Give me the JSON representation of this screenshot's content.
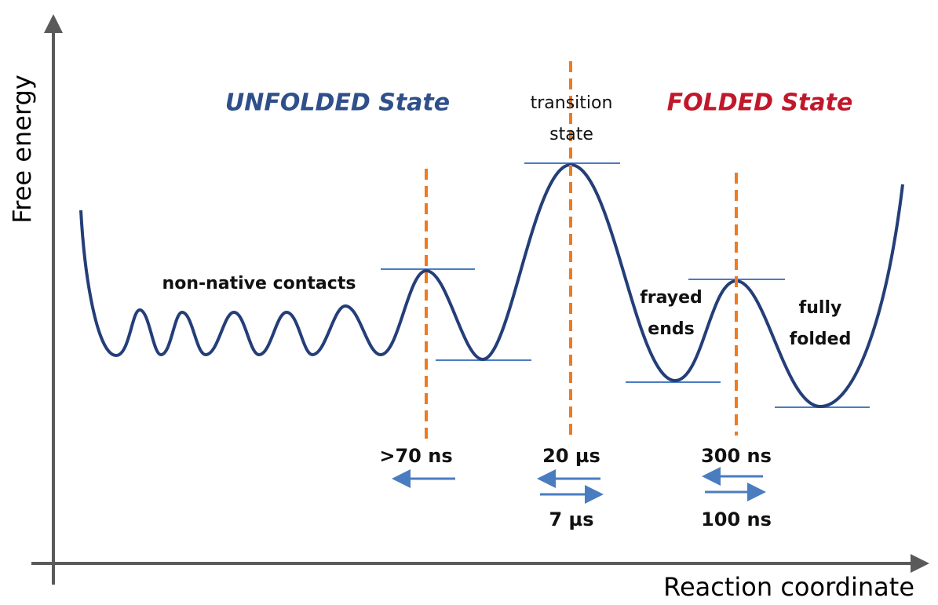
{
  "axes": {
    "y_label": "Free energy",
    "x_label": "Reaction coordinate"
  },
  "states": {
    "unfolded": "UNFOLDED State",
    "folded": "FOLDED State"
  },
  "annotations": {
    "transition_state": [
      "transition",
      "state"
    ],
    "non_native": "non-native contacts",
    "frayed_ends": [
      "frayed",
      "ends"
    ],
    "fully_folded": [
      "fully",
      "folded"
    ]
  },
  "rates": {
    "unfolded_barrier": ">70 ns",
    "transition_back": "20 µs",
    "transition_forward": "7 µs",
    "folded_back": "300 ns",
    "folded_forward": "100 ns"
  }
}
